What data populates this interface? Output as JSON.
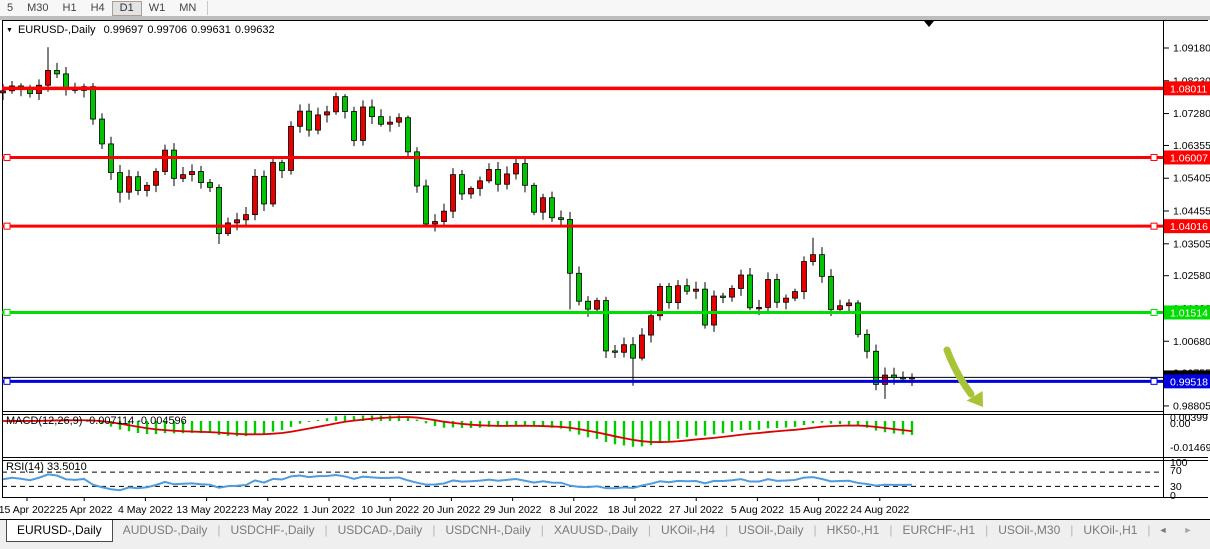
{
  "toolbar": {
    "timeframes": [
      "5",
      "M30",
      "H1",
      "H4",
      "D1",
      "W1",
      "MN"
    ],
    "active": "D1"
  },
  "title_bar": {
    "dropdown_icon": "▼",
    "symbol": "EURUSD-,Daily",
    "open": "0.99697",
    "high": "0.99706",
    "low": "0.99631",
    "close": "0.99632"
  },
  "chart_data": {
    "type": "candlestick",
    "title": "EURUSD-,Daily",
    "timeframe": "D1",
    "up_color": "#e60000",
    "down_color": "#00c400",
    "wick_color": "#000000",
    "first_open": 1.0788,
    "closes": [
      1.0794,
      1.0808,
      1.08,
      1.0786,
      1.081,
      1.0853,
      1.0843,
      1.0802,
      1.0795,
      1.0806,
      1.0712,
      1.064,
      1.0557,
      1.05,
      1.0545,
      1.0505,
      1.052,
      1.056,
      1.0622,
      1.054,
      1.0551,
      1.056,
      1.0528,
      1.0514,
      1.038,
      1.0411,
      1.042,
      1.0435,
      1.0546,
      1.0466,
      1.0586,
      1.0563,
      1.0691,
      1.0735,
      1.068,
      1.0724,
      1.0733,
      1.0777,
      1.0734,
      1.065,
      1.0747,
      1.0719,
      1.0697,
      1.0703,
      1.0716,
      1.0617,
      1.0518,
      1.0408,
      1.0415,
      1.0445,
      1.0551,
      1.0495,
      1.0511,
      1.0533,
      1.0566,
      1.0523,
      1.0553,
      1.0583,
      1.052,
      1.0442,
      1.0484,
      1.0426,
      1.0421,
      1.0265,
      1.0184,
      1.0161,
      1.0186,
      1.004,
      1.0036,
      1.0058,
      1.0019,
      1.0086,
      1.0142,
      1.0227,
      1.018,
      1.0229,
      1.0213,
      1.0219,
      1.0115,
      1.0199,
      1.0196,
      1.0221,
      1.026,
      1.0165,
      1.0166,
      1.0247,
      1.0181,
      1.0193,
      1.0212,
      1.0299,
      1.0319,
      1.0256,
      1.016,
      1.0171,
      1.0179,
      1.0088,
      1.0039,
      0.9943,
      0.997,
      0.9963,
      0.996,
      0.9963
    ],
    "wick_overrides": {
      "5": {
        "h": 1.092
      },
      "13": {
        "l": 1.047
      },
      "24": {
        "l": 1.035
      },
      "63": {
        "l": 1.016
      },
      "70": {
        "l": 0.9939
      },
      "90": {
        "h": 1.0368
      },
      "97": {
        "l": 0.9926
      },
      "98": {
        "l": 0.9901
      }
    },
    "y_ticks": [
      "1.09180",
      "1.08230",
      "1.07280",
      "1.06355",
      "1.05405",
      "1.04455",
      "1.03505",
      "1.02580",
      "1.01630",
      "1.00680",
      "0.99755",
      "0.98805"
    ],
    "x_labels": [
      "15 Apr 2022",
      "25 Apr 2022",
      "4 May 2022",
      "13 May 2022",
      "23 May 2022",
      "1 Jun 2022",
      "10 Jun 2022",
      "20 Jun 2022",
      "29 Jun 2022",
      "8 Jul 2022",
      "18 Jul 2022",
      "27 Jul 2022",
      "5 Aug 2022",
      "15 Aug 2022",
      "24 Aug 2022"
    ],
    "hlines": [
      {
        "price": 1.08011,
        "label": "1.08011",
        "color": "#ff0000",
        "width": 3.5,
        "marker": false
      },
      {
        "price": 1.06007,
        "label": "1.06007",
        "color": "#ff0000",
        "width": 3,
        "marker": true
      },
      {
        "price": 1.04016,
        "label": "1.04016",
        "color": "#ff0000",
        "width": 3,
        "marker": true
      },
      {
        "price": 1.01514,
        "label": "1.01514",
        "color": "#00dd00",
        "width": 3,
        "marker": true
      },
      {
        "price": 0.99518,
        "label": "0.99518",
        "color": "#0000e0",
        "width": 3,
        "marker": true
      }
    ],
    "current_price": {
      "value": 0.99632,
      "label": "0.99632",
      "color": "#000000"
    },
    "indicators": [
      {
        "name": "MACD",
        "label": "MACD(12,26,9) -0.007114 -0.004596",
        "fast": 12,
        "slow": 26,
        "signal_period": 9,
        "value_main": "-0.007114",
        "value_signal": "-0.004596",
        "axis_max": "0.00399",
        "axis_zero": "0.00",
        "axis_min": "-0.014693",
        "hist_color": "#00cc00",
        "signal_color": "#dd0000"
      },
      {
        "name": "RSI",
        "label": "RSI(14) 33.5010",
        "period": 14,
        "value": "33.5010",
        "levels": [
          70,
          30
        ],
        "axis_labels": [
          "100",
          "70",
          "30",
          "0"
        ],
        "line_color": "#4f9be0"
      }
    ],
    "annotation_arrow": {
      "color": "#a7c437"
    },
    "legend_position": "top-left",
    "grid": false
  },
  "tabs": {
    "active": "EURUSD-,Daily",
    "items": [
      "EURUSD-,Daily",
      "AUDUSD-,Daily",
      "USDCHF-,Daily",
      "USDCAD-,Daily",
      "USDCNH-,Daily",
      "XAUUSD-,Daily",
      "UKOil-,H4",
      "USOil-,Daily",
      "HK50-,H1",
      "EURCHF-,H1",
      "USOil-,M30",
      "UKOil-,H1"
    ],
    "scroll_left": "◄",
    "scroll_right": "►"
  }
}
